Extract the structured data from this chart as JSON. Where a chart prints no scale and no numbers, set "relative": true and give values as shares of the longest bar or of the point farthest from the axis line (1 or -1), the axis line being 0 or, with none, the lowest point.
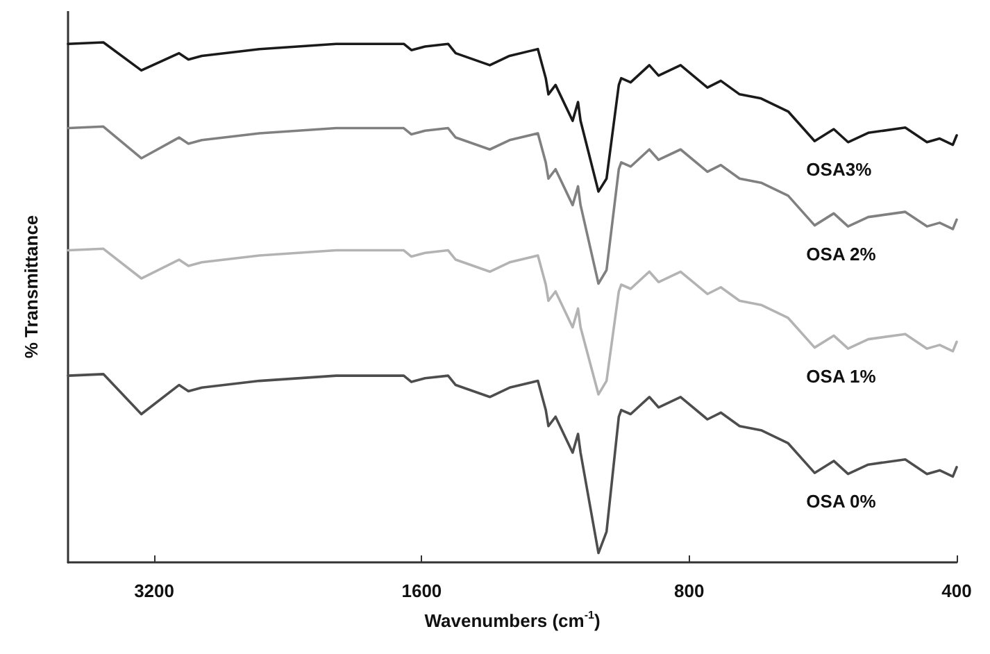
{
  "chart_data": {
    "type": "line",
    "relative": true,
    "xlabel": "Wavenumbers (cm$^{-1}$)",
    "ylabel": "% Transmittance",
    "log": "x",
    "xlim": [
      4000,
      400
    ],
    "xticks": [
      3200,
      1600,
      800,
      400
    ],
    "grid": false,
    "legend": false,
    "marker": "none",
    "line_style": "solid",
    "x": [
      4000,
      3650,
      3308,
      3000,
      2928,
      2828,
      2436,
      1997,
      1676,
      1643,
      1586,
      1494,
      1465,
      1341,
      1274,
      1184,
      1160,
      1152,
      1131,
      1082,
      1067,
      1060,
      1012,
      991,
      960,
      954,
      931,
      887,
      866,
      818,
      763,
      737,
      702,
      664,
      619,
      578,
      550,
      530,
      503,
      457,
      432,
      418,
      404,
      400
    ],
    "series": [
      {
        "name": "OSA3%",
        "color": "#1a1a1a",
        "values": [
          0.997,
          1.0,
          0.946,
          0.979,
          0.967,
          0.974,
          0.987,
          0.997,
          0.997,
          0.985,
          0.992,
          0.997,
          0.979,
          0.956,
          0.974,
          0.987,
          0.931,
          0.9,
          0.918,
          0.849,
          0.885,
          0.849,
          0.713,
          0.738,
          0.918,
          0.931,
          0.923,
          0.956,
          0.936,
          0.956,
          0.913,
          0.926,
          0.9,
          0.892,
          0.867,
          0.81,
          0.833,
          0.808,
          0.826,
          0.836,
          0.808,
          0.815,
          0.803,
          0.821
        ]
      },
      {
        "name": "OSA 2%",
        "color": "#808080",
        "values": [
          0.835,
          0.838,
          0.777,
          0.817,
          0.805,
          0.812,
          0.825,
          0.835,
          0.835,
          0.823,
          0.83,
          0.835,
          0.817,
          0.794,
          0.812,
          0.825,
          0.769,
          0.738,
          0.756,
          0.687,
          0.723,
          0.687,
          0.536,
          0.562,
          0.756,
          0.769,
          0.761,
          0.794,
          0.774,
          0.794,
          0.751,
          0.764,
          0.738,
          0.73,
          0.705,
          0.648,
          0.671,
          0.646,
          0.664,
          0.674,
          0.646,
          0.653,
          0.641,
          0.659
        ]
      },
      {
        "name": "OSA 1%",
        "color": "#b3b3b3",
        "values": [
          0.6,
          0.603,
          0.546,
          0.582,
          0.57,
          0.577,
          0.59,
          0.6,
          0.6,
          0.588,
          0.595,
          0.6,
          0.582,
          0.559,
          0.577,
          0.59,
          0.534,
          0.503,
          0.521,
          0.452,
          0.488,
          0.452,
          0.323,
          0.349,
          0.521,
          0.534,
          0.526,
          0.559,
          0.539,
          0.559,
          0.516,
          0.529,
          0.503,
          0.495,
          0.47,
          0.413,
          0.436,
          0.411,
          0.429,
          0.439,
          0.411,
          0.418,
          0.406,
          0.424
        ]
      },
      {
        "name": "OSA 0%",
        "color": "#4d4d4d",
        "values": [
          0.359,
          0.362,
          0.285,
          0.341,
          0.329,
          0.336,
          0.349,
          0.359,
          0.359,
          0.347,
          0.354,
          0.359,
          0.341,
          0.318,
          0.336,
          0.349,
          0.293,
          0.262,
          0.28,
          0.211,
          0.247,
          0.211,
          0.018,
          0.059,
          0.28,
          0.293,
          0.285,
          0.318,
          0.298,
          0.318,
          0.275,
          0.288,
          0.262,
          0.254,
          0.229,
          0.172,
          0.195,
          0.17,
          0.188,
          0.198,
          0.17,
          0.177,
          0.165,
          0.183
        ]
      }
    ]
  }
}
